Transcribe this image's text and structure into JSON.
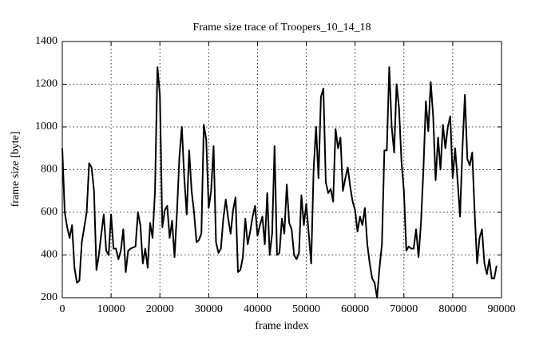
{
  "chart_data": {
    "type": "line",
    "title": "Frame size trace of Troopers_10_14_18",
    "xlabel": "frame index",
    "ylabel": "frame size [byte]",
    "xlim": [
      0,
      90000
    ],
    "xticks": [
      0,
      10000,
      20000,
      30000,
      40000,
      50000,
      60000,
      70000,
      80000,
      90000
    ],
    "ylim": [
      200,
      1400
    ],
    "yticks": [
      200,
      400,
      600,
      800,
      1000,
      1200,
      1400
    ],
    "grid": true,
    "x": [
      0,
      500,
      1000,
      1500,
      2000,
      2500,
      3000,
      3500,
      4000,
      5000,
      5500,
      6000,
      6500,
      7000,
      7500,
      8000,
      8500,
      9000,
      9500,
      10000,
      10500,
      11000,
      11500,
      12000,
      12500,
      13000,
      13500,
      14000,
      15000,
      15500,
      16000,
      16500,
      17000,
      17500,
      18000,
      18500,
      19000,
      19500,
      20000,
      20500,
      21000,
      21500,
      22000,
      22500,
      23000,
      23500,
      24000,
      24500,
      25000,
      25500,
      26000,
      26500,
      27000,
      27500,
      28000,
      28500,
      29000,
      29500,
      30000,
      30500,
      31000,
      31500,
      32000,
      32500,
      33000,
      33500,
      34000,
      34500,
      35000,
      35500,
      36000,
      36500,
      37000,
      37500,
      38000,
      38500,
      39000,
      39500,
      40000,
      40500,
      41000,
      41500,
      42000,
      42500,
      43000,
      43500,
      44000,
      44500,
      45000,
      45500,
      46000,
      46500,
      47000,
      47500,
      48000,
      48500,
      49000,
      49500,
      50000,
      50500,
      51000,
      51500,
      52000,
      52500,
      53000,
      53500,
      54000,
      54500,
      55000,
      55500,
      56000,
      56500,
      57000,
      57500,
      58000,
      58500,
      59000,
      59500,
      60000,
      60500,
      61000,
      61500,
      62000,
      62500,
      63000,
      63500,
      64000,
      64500,
      65000,
      65500,
      66000,
      66500,
      67000,
      67500,
      68000,
      68500,
      69000,
      69500,
      70000,
      70500,
      71000,
      71500,
      72000,
      72500,
      73000,
      73500,
      74000,
      74500,
      75000,
      75500,
      76000,
      76500,
      77000,
      77500,
      78000,
      78500,
      79000,
      79500,
      80000,
      80500,
      81000,
      81500,
      82000,
      82500,
      83000,
      83500,
      84000,
      84500,
      85000,
      85500,
      86000,
      86500,
      87000,
      87500,
      88000,
      88500,
      89000
    ],
    "series": [
      {
        "name": "frame size",
        "color": "#000000",
        "values": [
          900,
          600,
          530,
          480,
          540,
          340,
          270,
          280,
          460,
          600,
          830,
          810,
          700,
          330,
          400,
          500,
          590,
          420,
          400,
          590,
          430,
          430,
          380,
          420,
          520,
          320,
          420,
          430,
          440,
          600,
          540,
          360,
          430,
          340,
          550,
          480,
          700,
          1280,
          1150,
          530,
          610,
          630,
          480,
          560,
          390,
          600,
          860,
          1000,
          760,
          590,
          890,
          700,
          600,
          460,
          470,
          500,
          1010,
          940,
          620,
          700,
          910,
          460,
          410,
          430,
          570,
          660,
          570,
          500,
          610,
          670,
          320,
          330,
          390,
          570,
          450,
          510,
          580,
          630,
          490,
          540,
          580,
          450,
          690,
          400,
          500,
          910,
          400,
          410,
          570,
          500,
          730,
          550,
          520,
          400,
          380,
          410,
          680,
          540,
          640,
          500,
          360,
          800,
          1000,
          760,
          1140,
          1180,
          740,
          690,
          710,
          650,
          990,
          900,
          950,
          700,
          760,
          810,
          720,
          650,
          610,
          510,
          580,
          540,
          620,
          450,
          360,
          290,
          270,
          200,
          340,
          450,
          890,
          890,
          1280,
          1000,
          880,
          1200,
          1090,
          840,
          700,
          420,
          440,
          430,
          430,
          520,
          390,
          550,
          800,
          1120,
          980,
          1210,
          1050,
          750,
          950,
          800,
          1010,
          900,
          1000,
          1050,
          760,
          900,
          750,
          580,
          900,
          1150,
          850,
          820,
          880,
          600,
          360,
          480,
          520,
          360,
          310,
          380,
          290,
          290,
          350
        ]
      }
    ]
  }
}
